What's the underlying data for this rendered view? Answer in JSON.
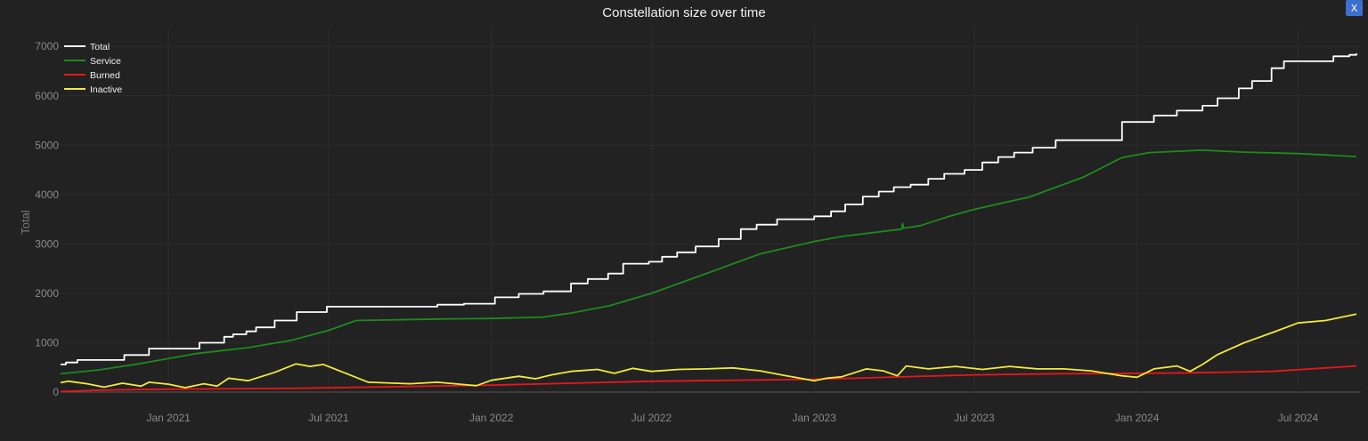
{
  "close_button": {
    "label": "X"
  },
  "chart_data": {
    "type": "line",
    "title": "Constellation size over time",
    "xlabel": "",
    "ylabel": "Total",
    "x_range": [
      "2020-09-01",
      "2024-09-10"
    ],
    "ylim": [
      0,
      7400
    ],
    "grid": true,
    "legend_position": "top-left",
    "x_ticks": [
      "2021-01-01",
      "2021-07-01",
      "2022-01-01",
      "2022-07-01",
      "2023-01-01",
      "2023-07-01",
      "2024-01-01",
      "2024-07-01"
    ],
    "x_tick_labels": [
      "Jan 2021",
      "Jul 2021",
      "Jan 2022",
      "Jul 2022",
      "Jan 2023",
      "Jul 2023",
      "Jan 2024",
      "Jul 2024"
    ],
    "y_ticks": [
      0,
      1000,
      2000,
      3000,
      4000,
      5000,
      6000,
      7000
    ],
    "y_tick_labels": [
      "0",
      "1000",
      "2000",
      "3000",
      "4000",
      "5000",
      "6000",
      "7000"
    ],
    "series": [
      {
        "name": "Total",
        "color": "#ffffff",
        "step": true,
        "points": [
          [
            "2020-09-01",
            560
          ],
          [
            "2020-09-07",
            600
          ],
          [
            "2020-09-20",
            650
          ],
          [
            "2020-11-12",
            750
          ],
          [
            "2020-12-10",
            880
          ],
          [
            "2021-02-05",
            1000
          ],
          [
            "2021-03-05",
            1120
          ],
          [
            "2021-03-15",
            1170
          ],
          [
            "2021-03-30",
            1230
          ],
          [
            "2021-04-10",
            1310
          ],
          [
            "2021-05-01",
            1450
          ],
          [
            "2021-05-26",
            1620
          ],
          [
            "2021-06-29",
            1730
          ],
          [
            "2021-11-01",
            1770
          ],
          [
            "2021-12-01",
            1790
          ],
          [
            "2022-01-05",
            1920
          ],
          [
            "2022-02-01",
            1990
          ],
          [
            "2022-03-01",
            2040
          ],
          [
            "2022-04-01",
            2200
          ],
          [
            "2022-04-20",
            2290
          ],
          [
            "2022-05-13",
            2400
          ],
          [
            "2022-05-30",
            2600
          ],
          [
            "2022-06-28",
            2640
          ],
          [
            "2022-07-13",
            2740
          ],
          [
            "2022-07-30",
            2830
          ],
          [
            "2022-08-20",
            2950
          ],
          [
            "2022-09-15",
            3100
          ],
          [
            "2022-10-10",
            3300
          ],
          [
            "2022-10-28",
            3390
          ],
          [
            "2022-11-20",
            3500
          ],
          [
            "2023-01-01",
            3560
          ],
          [
            "2023-01-20",
            3660
          ],
          [
            "2023-02-05",
            3800
          ],
          [
            "2023-02-25",
            3960
          ],
          [
            "2023-03-15",
            4060
          ],
          [
            "2023-04-01",
            4150
          ],
          [
            "2023-04-20",
            4200
          ],
          [
            "2023-05-10",
            4320
          ],
          [
            "2023-05-28",
            4420
          ],
          [
            "2023-06-20",
            4500
          ],
          [
            "2023-07-10",
            4650
          ],
          [
            "2023-07-28",
            4760
          ],
          [
            "2023-08-15",
            4850
          ],
          [
            "2023-09-05",
            4950
          ],
          [
            "2023-10-01",
            5100
          ],
          [
            "2023-12-15",
            5470
          ],
          [
            "2024-01-20",
            5600
          ],
          [
            "2024-02-15",
            5700
          ],
          [
            "2024-03-15",
            5800
          ],
          [
            "2024-04-01",
            5950
          ],
          [
            "2024-04-25",
            6150
          ],
          [
            "2024-05-10",
            6300
          ],
          [
            "2024-06-01",
            6560
          ],
          [
            "2024-06-15",
            6700
          ],
          [
            "2024-07-15",
            6700
          ],
          [
            "2024-08-10",
            6800
          ],
          [
            "2024-08-28",
            6830
          ],
          [
            "2024-09-05",
            6860
          ]
        ]
      },
      {
        "name": "Service",
        "color": "#1e8a1e",
        "step": false,
        "points": [
          [
            "2020-09-01",
            370
          ],
          [
            "2020-10-15",
            450
          ],
          [
            "2020-12-01",
            580
          ],
          [
            "2021-01-01",
            680
          ],
          [
            "2021-02-01",
            780
          ],
          [
            "2021-04-01",
            900
          ],
          [
            "2021-05-20",
            1050
          ],
          [
            "2021-07-01",
            1250
          ],
          [
            "2021-08-01",
            1450
          ],
          [
            "2021-11-01",
            1480
          ],
          [
            "2022-01-01",
            1490
          ],
          [
            "2022-03-01",
            1520
          ],
          [
            "2022-04-01",
            1600
          ],
          [
            "2022-05-15",
            1750
          ],
          [
            "2022-07-01",
            2000
          ],
          [
            "2022-09-01",
            2400
          ],
          [
            "2022-11-01",
            2800
          ],
          [
            "2023-01-01",
            3050
          ],
          [
            "2023-02-01",
            3150
          ],
          [
            "2023-04-10",
            3300
          ],
          [
            "2023-04-11",
            3420
          ],
          [
            "2023-04-12",
            3320
          ],
          [
            "2023-05-01",
            3370
          ],
          [
            "2023-06-01",
            3550
          ],
          [
            "2023-07-01",
            3700
          ],
          [
            "2023-09-01",
            3950
          ],
          [
            "2023-11-01",
            4350
          ],
          [
            "2023-12-15",
            4750
          ],
          [
            "2024-01-15",
            4850
          ],
          [
            "2024-03-15",
            4900
          ],
          [
            "2024-05-01",
            4860
          ],
          [
            "2024-07-01",
            4830
          ],
          [
            "2024-09-05",
            4770
          ]
        ]
      },
      {
        "name": "Burned",
        "color": "#e8171c",
        "step": false,
        "points": [
          [
            "2020-09-01",
            10
          ],
          [
            "2020-10-15",
            40
          ],
          [
            "2021-01-01",
            60
          ],
          [
            "2021-06-01",
            80
          ],
          [
            "2022-01-01",
            140
          ],
          [
            "2022-07-01",
            220
          ],
          [
            "2023-01-01",
            260
          ],
          [
            "2023-07-01",
            350
          ],
          [
            "2023-10-01",
            370
          ],
          [
            "2024-01-01",
            380
          ],
          [
            "2024-03-01",
            390
          ],
          [
            "2024-06-01",
            420
          ],
          [
            "2024-09-05",
            530
          ]
        ]
      },
      {
        "name": "Inactive",
        "color": "#f0eb3a",
        "step": false,
        "points": [
          [
            "2020-09-01",
            190
          ],
          [
            "2020-09-10",
            220
          ],
          [
            "2020-10-01",
            170
          ],
          [
            "2020-10-20",
            100
          ],
          [
            "2020-11-10",
            180
          ],
          [
            "2020-12-01",
            120
          ],
          [
            "2020-12-10",
            200
          ],
          [
            "2021-01-01",
            160
          ],
          [
            "2021-01-20",
            90
          ],
          [
            "2021-02-10",
            170
          ],
          [
            "2021-02-25",
            120
          ],
          [
            "2021-03-10",
            280
          ],
          [
            "2021-04-01",
            230
          ],
          [
            "2021-05-01",
            400
          ],
          [
            "2021-05-25",
            570
          ],
          [
            "2021-06-10",
            520
          ],
          [
            "2021-06-25",
            560
          ],
          [
            "2021-07-15",
            420
          ],
          [
            "2021-08-15",
            200
          ],
          [
            "2021-10-01",
            170
          ],
          [
            "2021-11-01",
            200
          ],
          [
            "2021-12-15",
            130
          ],
          [
            "2022-01-01",
            240
          ],
          [
            "2022-02-01",
            320
          ],
          [
            "2022-02-20",
            270
          ],
          [
            "2022-03-10",
            350
          ],
          [
            "2022-04-01",
            420
          ],
          [
            "2022-05-01",
            460
          ],
          [
            "2022-05-20",
            380
          ],
          [
            "2022-06-10",
            480
          ],
          [
            "2022-07-01",
            420
          ],
          [
            "2022-08-01",
            460
          ],
          [
            "2022-09-01",
            470
          ],
          [
            "2022-10-01",
            490
          ],
          [
            "2022-11-01",
            430
          ],
          [
            "2022-12-01",
            330
          ],
          [
            "2023-01-01",
            230
          ],
          [
            "2023-01-15",
            280
          ],
          [
            "2023-02-01",
            310
          ],
          [
            "2023-03-01",
            470
          ],
          [
            "2023-03-20",
            430
          ],
          [
            "2023-04-05",
            330
          ],
          [
            "2023-04-15",
            530
          ],
          [
            "2023-05-10",
            470
          ],
          [
            "2023-06-10",
            520
          ],
          [
            "2023-07-10",
            460
          ],
          [
            "2023-08-10",
            520
          ],
          [
            "2023-09-10",
            470
          ],
          [
            "2023-10-10",
            470
          ],
          [
            "2023-11-10",
            430
          ],
          [
            "2023-12-15",
            330
          ],
          [
            "2024-01-01",
            300
          ],
          [
            "2024-01-20",
            470
          ],
          [
            "2024-02-15",
            530
          ],
          [
            "2024-03-01",
            420
          ],
          [
            "2024-03-15",
            560
          ],
          [
            "2024-04-01",
            760
          ],
          [
            "2024-05-01",
            1000
          ],
          [
            "2024-06-01",
            1200
          ],
          [
            "2024-07-01",
            1400
          ],
          [
            "2024-08-01",
            1450
          ],
          [
            "2024-09-05",
            1580
          ]
        ]
      }
    ]
  }
}
